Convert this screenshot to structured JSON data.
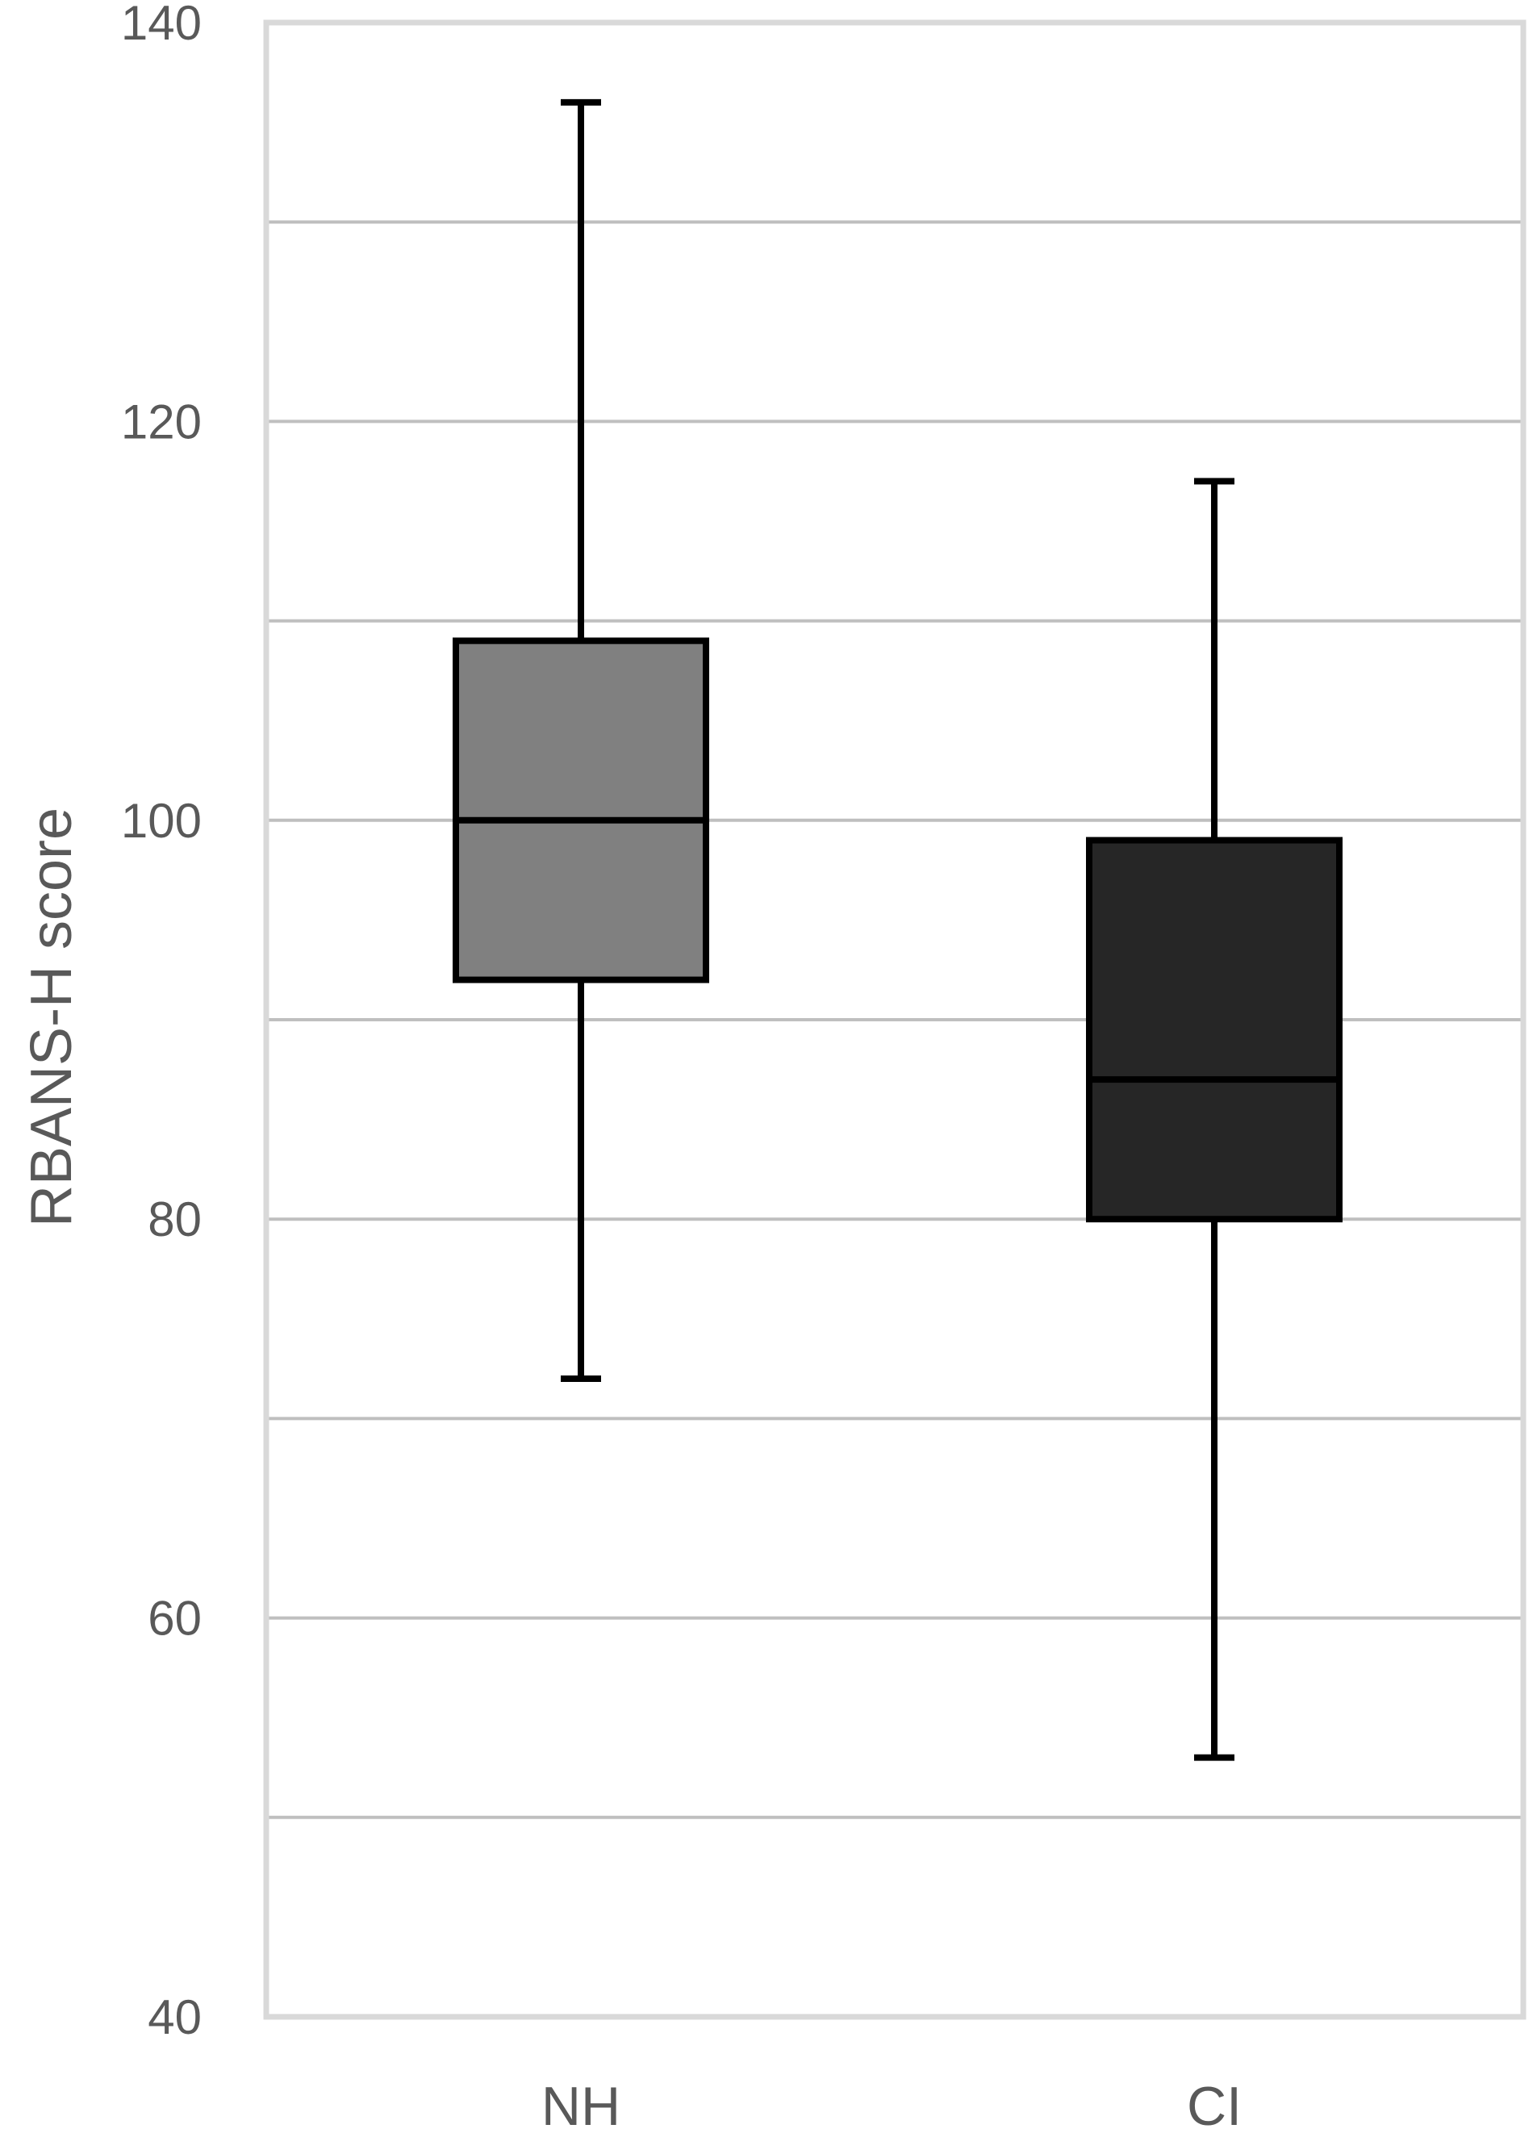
{
  "chart_data": {
    "type": "boxplot",
    "title": "",
    "xlabel": "",
    "ylabel": "RBANS-H score",
    "ylim": [
      40,
      140
    ],
    "y_ticks": [
      40,
      60,
      80,
      100,
      120,
      140
    ],
    "y_tick_labels": [
      "40",
      "60",
      "80",
      "100",
      "120",
      "140"
    ],
    "grid_lines": [
      50,
      60,
      70,
      80,
      90,
      100,
      110,
      120,
      130
    ],
    "grid": true,
    "categories": [
      "NH",
      "CI"
    ],
    "boxes": [
      {
        "category": "NH",
        "whisker_low": 72,
        "q1": 92,
        "median": 100,
        "q3": 109,
        "whisker_high": 136,
        "color": "#808080"
      },
      {
        "category": "CI",
        "whisker_low": 53,
        "q1": 80,
        "median": 87,
        "q3": 99,
        "whisker_high": 117,
        "color": "#262626"
      }
    ],
    "colors": {
      "grid": "#bfbfbf",
      "frame": "#d9d9d9",
      "stroke": "#000000",
      "text": "#595959"
    }
  }
}
